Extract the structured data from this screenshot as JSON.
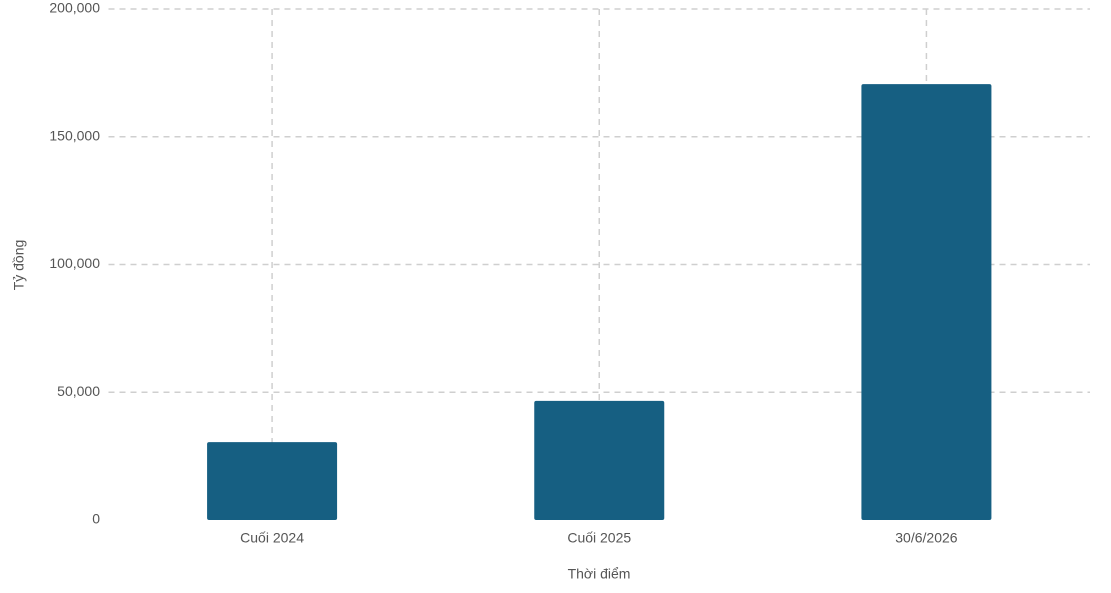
{
  "chart_data": {
    "type": "bar",
    "x_label": "Thời điểm",
    "y_label": "Tỷ đồng",
    "categories": [
      "Cuối 2024",
      "Cuối 2025",
      "30/6/2026"
    ],
    "values": [
      30500,
      46600,
      170600
    ],
    "color": "#165f82",
    "ylim": [
      0,
      200000
    ],
    "yticks": [
      0,
      {
        "value": 50000,
        "label": "50,000"
      },
      {
        "value": 100000,
        "label": "100,000"
      },
      {
        "value": 150000,
        "label": "150,000"
      },
      {
        "value": 200000,
        "label": "200,000"
      }
    ],
    "grid": true
  }
}
